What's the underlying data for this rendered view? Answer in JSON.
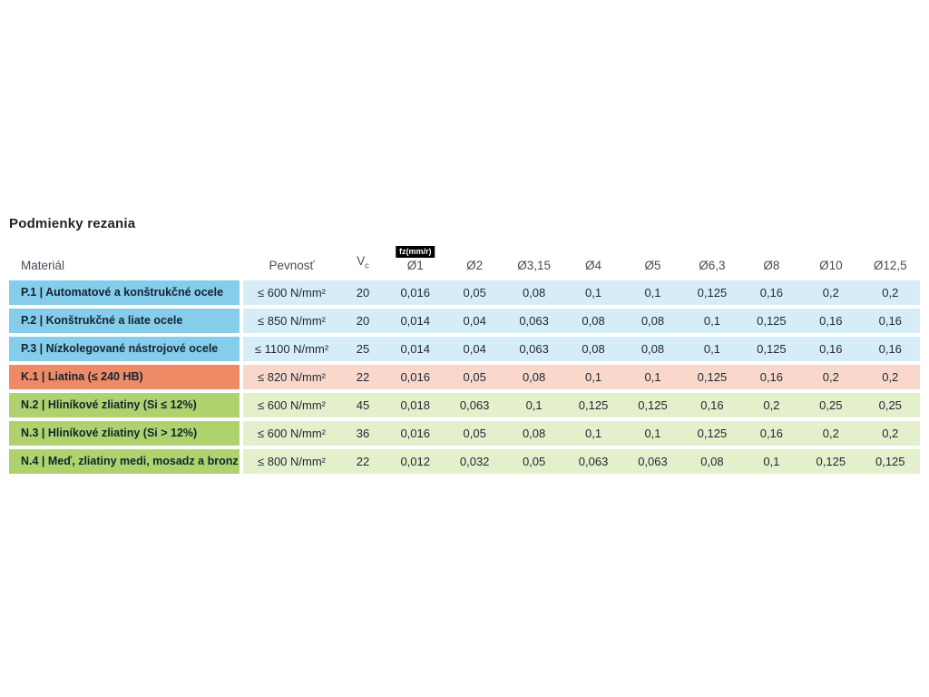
{
  "page": {
    "title": "Podmienky rezania"
  },
  "table": {
    "headers": {
      "material": "Materiál",
      "pevnost": "Pevnosť",
      "vc_label": "V",
      "vc_sub": "c",
      "fz_badge": "fz(mm/r)",
      "diameters": [
        "Ø1",
        "Ø2",
        "Ø3,15",
        "Ø4",
        "Ø5",
        "Ø6,3",
        "Ø8",
        "Ø10",
        "Ø12,5"
      ]
    },
    "colors": {
      "steel_material": "#85cdeb",
      "steel_row": "#d6edf8",
      "cast_iron_material": "#ef8a66",
      "cast_iron_row": "#f9d8cb",
      "nonferrous_material": "#b0d26e",
      "nonferrous_row": "#e4efcb",
      "badge_bg": "#000000",
      "badge_text": "#ffffff"
    },
    "rows": [
      {
        "material": "P.1 | Automatové a konštrukčné ocele",
        "pevnost": "≤ 600 N/mm²",
        "vc": "20",
        "fz": [
          "0,016",
          "0,05",
          "0,08",
          "0,1",
          "0,1",
          "0,125",
          "0,16",
          "0,2",
          "0,2"
        ]
      },
      {
        "material": "P.2 | Konštrukčné a liate ocele",
        "pevnost": "≤ 850 N/mm²",
        "vc": "20",
        "fz": [
          "0,014",
          "0,04",
          "0,063",
          "0,08",
          "0,08",
          "0,1",
          "0,125",
          "0,16",
          "0,16"
        ]
      },
      {
        "material": "P.3 | Nízkolegované nástrojové ocele",
        "pevnost": "≤ 1100 N/mm²",
        "vc": "25",
        "fz": [
          "0,014",
          "0,04",
          "0,063",
          "0,08",
          "0,08",
          "0,1",
          "0,125",
          "0,16",
          "0,16"
        ]
      },
      {
        "material": "K.1 | Liatina (≤ 240 HB)",
        "pevnost": "≤ 820 N/mm²",
        "vc": "22",
        "fz": [
          "0,016",
          "0,05",
          "0,08",
          "0,1",
          "0,1",
          "0,125",
          "0,16",
          "0,2",
          "0,2"
        ]
      },
      {
        "material": "N.2 | Hliníkové zliatiny (Si ≤ 12%)",
        "pevnost": "≤ 600 N/mm²",
        "vc": "45",
        "fz": [
          "0,018",
          "0,063",
          "0,1",
          "0,125",
          "0,125",
          "0,16",
          "0,2",
          "0,25",
          "0,25"
        ]
      },
      {
        "material": "N.3 | Hliníkové zliatiny (Si > 12%)",
        "pevnost": "≤ 600 N/mm²",
        "vc": "36",
        "fz": [
          "0,016",
          "0,05",
          "0,08",
          "0,1",
          "0,1",
          "0,125",
          "0,16",
          "0,2",
          "0,2"
        ]
      },
      {
        "material": "N.4 | Meď, zliatiny medi, mosadz a bronz",
        "pevnost": "≤ 800 N/mm²",
        "vc": "22",
        "fz": [
          "0,012",
          "0,032",
          "0,05",
          "0,063",
          "0,063",
          "0,08",
          "0,1",
          "0,125",
          "0,125"
        ]
      }
    ]
  }
}
